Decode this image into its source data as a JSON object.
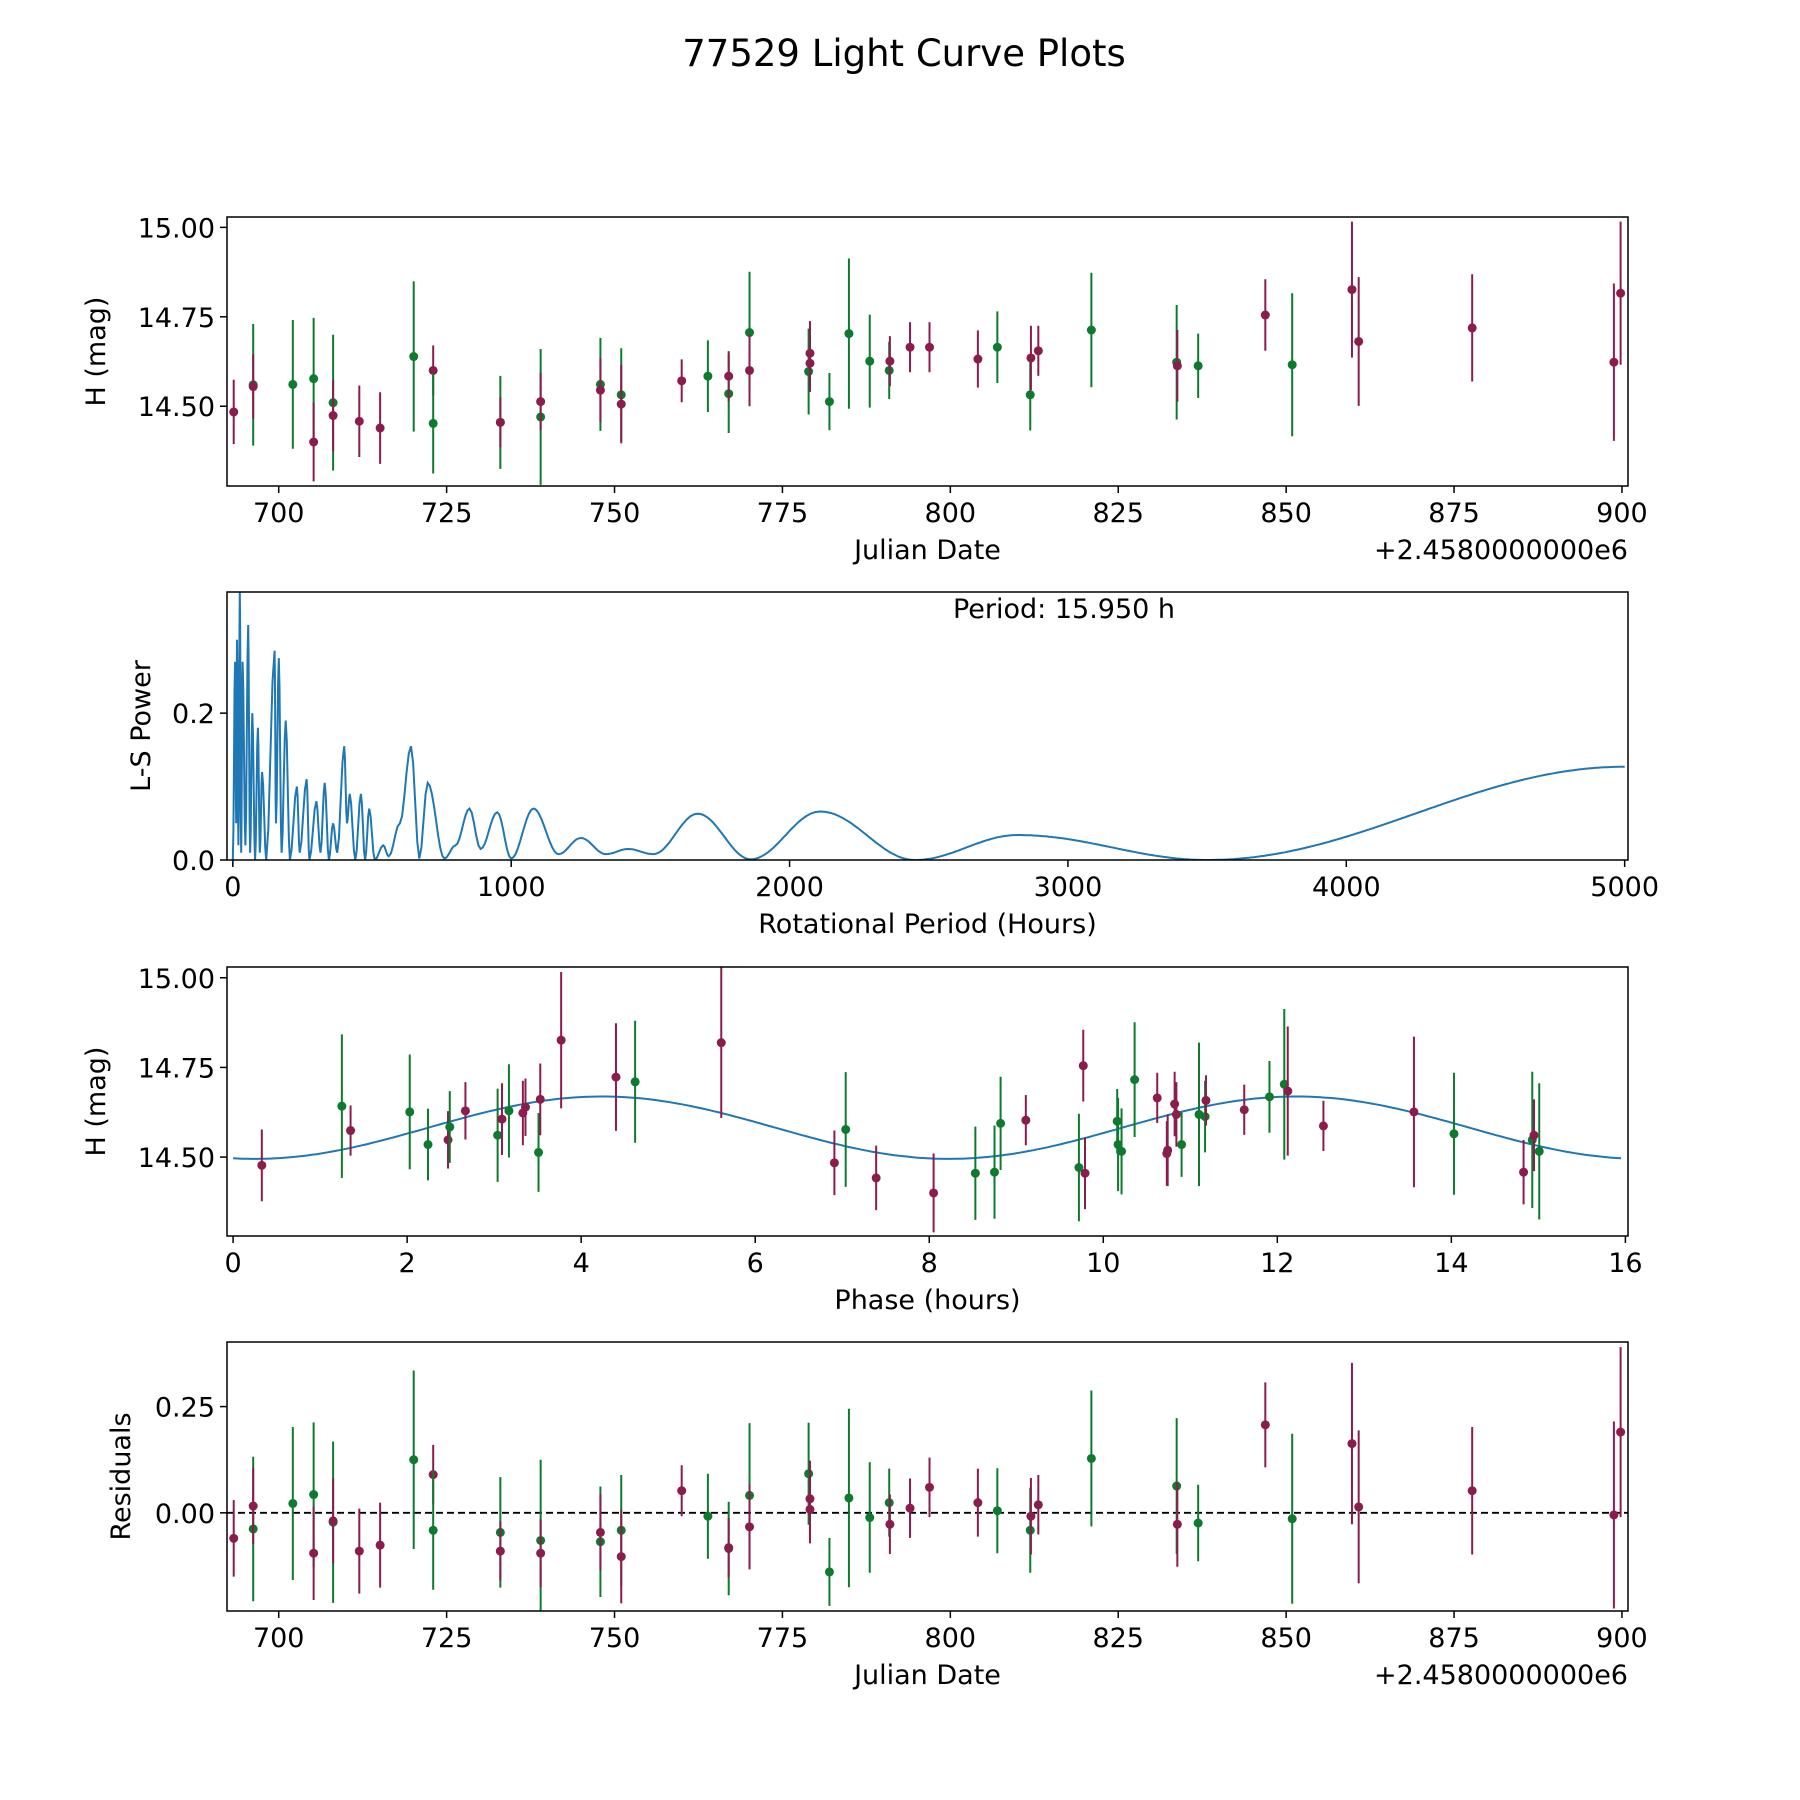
{
  "title": "77529 Light Curve Plots",
  "colors": {
    "filter_a": "#8a1c4e",
    "filter_b": "#0e7a2e",
    "line": "#1f77b4",
    "axis": "#000000"
  },
  "chart_data": [
    {
      "id": "lightcurve",
      "type": "scatter",
      "title": "",
      "xlabel": "Julian Date",
      "ylabel": "H (mag)",
      "offset_label": "+2.4580000000e6",
      "xlim": [
        692.3,
        900.9
      ],
      "ylim": [
        14.277,
        15.029
      ],
      "xticks": [
        700,
        725,
        750,
        775,
        800,
        825,
        850,
        875,
        900
      ],
      "xtick_labels": [
        "700",
        "725",
        "750",
        "775",
        "800",
        "825",
        "850",
        "875",
        "900"
      ],
      "yticks": [
        14.5,
        14.75,
        15.0
      ],
      "ytick_labels": [
        "14.50",
        "14.75",
        "15.00"
      ],
      "points": [
        {
          "jd": 693.3,
          "mag": 14.484,
          "err": 0.09,
          "resid": -0.06,
          "f": "a"
        },
        {
          "jd": 696.2,
          "mag": 14.56,
          "err": 0.17,
          "resid": -0.038,
          "f": "b"
        },
        {
          "jd": 696.2,
          "mag": 14.555,
          "err": 0.09,
          "resid": 0.016,
          "f": "a"
        },
        {
          "jd": 702.1,
          "mag": 14.561,
          "err": 0.18,
          "resid": 0.022,
          "f": "b"
        },
        {
          "jd": 705.2,
          "mag": 14.577,
          "err": 0.17,
          "resid": 0.043,
          "f": "b"
        },
        {
          "jd": 705.2,
          "mag": 14.4,
          "err": 0.11,
          "resid": -0.095,
          "f": "a"
        },
        {
          "jd": 708.1,
          "mag": 14.51,
          "err": 0.19,
          "resid": -0.022,
          "f": "b"
        },
        {
          "jd": 708.1,
          "mag": 14.474,
          "err": 0.1,
          "resid": -0.019,
          "f": "a"
        },
        {
          "jd": 712.0,
          "mag": 14.458,
          "err": 0.1,
          "resid": -0.09,
          "f": "a"
        },
        {
          "jd": 715.1,
          "mag": 14.439,
          "err": 0.1,
          "resid": -0.076,
          "f": "a"
        },
        {
          "jd": 720.1,
          "mag": 14.639,
          "err": 0.21,
          "resid": 0.125,
          "f": "b"
        },
        {
          "jd": 723.0,
          "mag": 14.6,
          "err": 0.07,
          "resid": 0.09,
          "f": "a"
        },
        {
          "jd": 723.0,
          "mag": 14.452,
          "err": 0.14,
          "resid": -0.041,
          "f": "b"
        },
        {
          "jd": 733.0,
          "mag": 14.455,
          "err": 0.13,
          "resid": -0.046,
          "f": "b"
        },
        {
          "jd": 733.0,
          "mag": 14.455,
          "err": 0.07,
          "resid": -0.09,
          "f": "a"
        },
        {
          "jd": 739.0,
          "mag": 14.47,
          "err": 0.19,
          "resid": -0.065,
          "f": "b"
        },
        {
          "jd": 739.0,
          "mag": 14.513,
          "err": 0.08,
          "resid": -0.095,
          "f": "a"
        },
        {
          "jd": 747.9,
          "mag": 14.561,
          "err": 0.13,
          "resid": -0.068,
          "f": "b"
        },
        {
          "jd": 747.9,
          "mag": 14.545,
          "err": 0.09,
          "resid": -0.046,
          "f": "a"
        },
        {
          "jd": 751.0,
          "mag": 14.532,
          "err": 0.13,
          "resid": -0.041,
          "f": "b"
        },
        {
          "jd": 751.0,
          "mag": 14.506,
          "err": 0.11,
          "resid": -0.103,
          "f": "a"
        },
        {
          "jd": 760.0,
          "mag": 14.571,
          "err": 0.06,
          "resid": 0.052,
          "f": "a"
        },
        {
          "jd": 763.9,
          "mag": 14.584,
          "err": 0.1,
          "resid": -0.008,
          "f": "b"
        },
        {
          "jd": 767.0,
          "mag": 14.535,
          "err": 0.11,
          "resid": -0.084,
          "f": "b"
        },
        {
          "jd": 767.0,
          "mag": 14.584,
          "err": 0.07,
          "resid": -0.082,
          "f": "a"
        },
        {
          "jd": 770.1,
          "mag": 14.706,
          "err": 0.17,
          "resid": 0.041,
          "f": "b"
        },
        {
          "jd": 770.1,
          "mag": 14.6,
          "err": 0.1,
          "resid": -0.033,
          "f": "a"
        },
        {
          "jd": 778.9,
          "mag": 14.597,
          "err": 0.12,
          "resid": 0.092,
          "f": "b"
        },
        {
          "jd": 779.1,
          "mag": 14.648,
          "err": 0.09,
          "resid": 0.033,
          "f": "a"
        },
        {
          "jd": 779.1,
          "mag": 14.62,
          "err": 0.08,
          "resid": 0.008,
          "f": "a"
        },
        {
          "jd": 782.0,
          "mag": 14.513,
          "err": 0.08,
          "resid": -0.139,
          "f": "b"
        },
        {
          "jd": 784.9,
          "mag": 14.703,
          "err": 0.21,
          "resid": 0.035,
          "f": "b"
        },
        {
          "jd": 788.0,
          "mag": 14.626,
          "err": 0.13,
          "resid": -0.011,
          "f": "b"
        },
        {
          "jd": 790.9,
          "mag": 14.6,
          "err": 0.08,
          "resid": 0.024,
          "f": "b"
        },
        {
          "jd": 791.0,
          "mag": 14.626,
          "err": 0.07,
          "resid": -0.027,
          "f": "a"
        },
        {
          "jd": 794.0,
          "mag": 14.665,
          "err": 0.07,
          "resid": 0.011,
          "f": "a"
        },
        {
          "jd": 796.9,
          "mag": 14.665,
          "err": 0.07,
          "resid": 0.06,
          "f": "a"
        },
        {
          "jd": 804.1,
          "mag": 14.632,
          "err": 0.08,
          "resid": 0.024,
          "f": "a"
        },
        {
          "jd": 807.0,
          "mag": 14.665,
          "err": 0.1,
          "resid": 0.005,
          "f": "b"
        },
        {
          "jd": 811.9,
          "mag": 14.532,
          "err": 0.1,
          "resid": -0.041,
          "f": "b"
        },
        {
          "jd": 812.0,
          "mag": 14.635,
          "err": 0.09,
          "resid": -0.008,
          "f": "a"
        },
        {
          "jd": 813.1,
          "mag": 14.655,
          "err": 0.07,
          "resid": 0.019,
          "f": "a"
        },
        {
          "jd": 821.0,
          "mag": 14.713,
          "err": 0.16,
          "resid": 0.128,
          "f": "b"
        },
        {
          "jd": 833.7,
          "mag": 14.623,
          "err": 0.16,
          "resid": 0.063,
          "f": "b"
        },
        {
          "jd": 833.8,
          "mag": 14.613,
          "err": 0.1,
          "resid": -0.027,
          "f": "a"
        },
        {
          "jd": 836.9,
          "mag": 14.613,
          "err": 0.09,
          "resid": -0.024,
          "f": "b"
        },
        {
          "jd": 846.9,
          "mag": 14.755,
          "err": 0.1,
          "resid": 0.207,
          "f": "a"
        },
        {
          "jd": 850.9,
          "mag": 14.616,
          "err": 0.2,
          "resid": -0.014,
          "f": "b"
        },
        {
          "jd": 859.8,
          "mag": 14.826,
          "err": 0.19,
          "resid": 0.163,
          "f": "a"
        },
        {
          "jd": 860.8,
          "mag": 14.681,
          "err": 0.18,
          "resid": 0.014,
          "f": "a"
        },
        {
          "jd": 877.7,
          "mag": 14.719,
          "err": 0.15,
          "resid": 0.052,
          "f": "a"
        },
        {
          "jd": 898.8,
          "mag": 14.623,
          "err": 0.22,
          "resid": -0.005,
          "f": "a"
        },
        {
          "jd": 899.8,
          "mag": 14.816,
          "err": 0.2,
          "resid": 0.19,
          "f": "a"
        }
      ]
    },
    {
      "id": "periodogram",
      "type": "line",
      "xlabel": "Rotational Period (Hours)",
      "ylabel": "L-S Power",
      "annotation": "Period: 15.950 h",
      "xlim": [
        -21,
        5012
      ],
      "ylim": [
        0,
        0.365
      ],
      "xticks": [
        0,
        1000,
        2000,
        3000,
        4000,
        5000
      ],
      "xtick_labels": [
        "0",
        "1000",
        "2000",
        "3000",
        "4000",
        "5000"
      ],
      "yticks": [
        0,
        0.2
      ],
      "ytick_labels": [
        "0.0",
        "0.2"
      ],
      "extrema": [
        [
          0,
          0
        ],
        [
          8,
          0.27
        ],
        [
          12,
          0.05
        ],
        [
          15,
          0.3
        ],
        [
          20,
          0.02
        ],
        [
          25,
          0.365
        ],
        [
          30,
          0.01
        ],
        [
          35,
          0.27
        ],
        [
          45,
          0.02
        ],
        [
          55,
          0.32
        ],
        [
          62,
          0.01
        ],
        [
          70,
          0.2
        ],
        [
          80,
          0.0
        ],
        [
          90,
          0.18
        ],
        [
          97,
          0.01
        ],
        [
          105,
          0.12
        ],
        [
          120,
          0.0
        ],
        [
          150,
          0.285
        ],
        [
          155,
          0.05
        ],
        [
          165,
          0.275
        ],
        [
          175,
          0.01
        ],
        [
          190,
          0.19
        ],
        [
          205,
          0.0
        ],
        [
          230,
          0.1
        ],
        [
          240,
          0.01
        ],
        [
          265,
          0.11
        ],
        [
          275,
          0.0
        ],
        [
          300,
          0.08
        ],
        [
          315,
          0.01
        ],
        [
          330,
          0.105
        ],
        [
          345,
          0.0
        ],
        [
          360,
          0.05
        ],
        [
          375,
          0.01
        ],
        [
          400,
          0.155
        ],
        [
          410,
          0.05
        ],
        [
          420,
          0.09
        ],
        [
          440,
          0.0
        ],
        [
          460,
          0.09
        ],
        [
          475,
          0.0
        ],
        [
          490,
          0.07
        ],
        [
          510,
          0.0
        ],
        [
          540,
          0.02
        ],
        [
          560,
          0.005
        ],
        [
          600,
          0.05
        ],
        [
          640,
          0.155
        ],
        [
          670,
          0.002
        ],
        [
          700,
          0.105
        ],
        [
          760,
          0.002
        ],
        [
          800,
          0.02
        ],
        [
          850,
          0.07
        ],
        [
          890,
          0.015
        ],
        [
          950,
          0.065
        ],
        [
          1000,
          0.002
        ],
        [
          1080,
          0.07
        ],
        [
          1170,
          0.008
        ],
        [
          1250,
          0.03
        ],
        [
          1340,
          0.008
        ],
        [
          1420,
          0.015
        ],
        [
          1510,
          0.008
        ],
        [
          1670,
          0.063
        ],
        [
          1860,
          0.001
        ],
        [
          2110,
          0.066
        ],
        [
          2450,
          0.0
        ],
        [
          2820,
          0.034
        ],
        [
          3500,
          0.0
        ],
        [
          5000,
          0.127
        ]
      ]
    },
    {
      "id": "phased",
      "type": "scatter",
      "xlabel": "Phase (hours)",
      "ylabel": "H (mag)",
      "xlim": [
        -0.07,
        16.03
      ],
      "ylim": [
        14.28,
        15.03
      ],
      "xticks": [
        0,
        2,
        4,
        6,
        8,
        10,
        12,
        14,
        16
      ],
      "xtick_labels": [
        "0",
        "2",
        "4",
        "6",
        "8",
        "10",
        "12",
        "14",
        "16"
      ],
      "yticks": [
        14.5,
        14.75,
        15.0
      ],
      "ytick_labels": [
        "14.50",
        "14.75",
        "15.00"
      ],
      "model": {
        "mean": 14.582,
        "amplitude": 0.087,
        "half_period_h": 7.975,
        "phase_shift_h": 0.25,
        "x_range": [
          0,
          15.95
        ]
      },
      "points": [
        {
          "phase": 0.33,
          "mag": 14.477,
          "err": 0.1,
          "f": "a"
        },
        {
          "phase": 1.25,
          "mag": 14.642,
          "err": 0.2,
          "f": "b"
        },
        {
          "phase": 1.35,
          "mag": 14.574,
          "err": 0.07,
          "f": "a"
        },
        {
          "phase": 2.03,
          "mag": 14.626,
          "err": 0.16,
          "f": "b"
        },
        {
          "phase": 2.24,
          "mag": 14.535,
          "err": 0.1,
          "f": "b"
        },
        {
          "phase": 2.47,
          "mag": 14.548,
          "err": 0.08,
          "f": "a"
        },
        {
          "phase": 2.49,
          "mag": 14.584,
          "err": 0.1,
          "f": "b"
        },
        {
          "phase": 2.67,
          "mag": 14.629,
          "err": 0.08,
          "f": "a"
        },
        {
          "phase": 3.04,
          "mag": 14.561,
          "err": 0.13,
          "f": "b"
        },
        {
          "phase": 3.09,
          "mag": 14.606,
          "err": 0.1,
          "f": "a"
        },
        {
          "phase": 3.17,
          "mag": 14.629,
          "err": 0.13,
          "f": "b"
        },
        {
          "phase": 3.33,
          "mag": 14.623,
          "err": 0.09,
          "f": "a"
        },
        {
          "phase": 3.36,
          "mag": 14.639,
          "err": 0.08,
          "f": "a"
        },
        {
          "phase": 3.51,
          "mag": 14.513,
          "err": 0.11,
          "f": "b"
        },
        {
          "phase": 3.53,
          "mag": 14.661,
          "err": 0.1,
          "f": "a"
        },
        {
          "phase": 3.77,
          "mag": 14.826,
          "err": 0.19,
          "f": "a"
        },
        {
          "phase": 4.4,
          "mag": 14.723,
          "err": 0.15,
          "f": "a"
        },
        {
          "phase": 4.62,
          "mag": 14.71,
          "err": 0.17,
          "f": "b"
        },
        {
          "phase": 5.61,
          "mag": 14.819,
          "err": 0.21,
          "f": "a"
        },
        {
          "phase": 6.91,
          "mag": 14.484,
          "err": 0.09,
          "f": "a"
        },
        {
          "phase": 7.04,
          "mag": 14.577,
          "err": 0.16,
          "f": "b"
        },
        {
          "phase": 7.39,
          "mag": 14.442,
          "err": 0.09,
          "f": "a"
        },
        {
          "phase": 8.05,
          "mag": 14.4,
          "err": 0.11,
          "f": "a"
        },
        {
          "phase": 8.53,
          "mag": 14.455,
          "err": 0.13,
          "f": "b"
        },
        {
          "phase": 8.75,
          "mag": 14.458,
          "err": 0.13,
          "f": "b"
        },
        {
          "phase": 8.82,
          "mag": 14.594,
          "err": 0.13,
          "f": "b"
        },
        {
          "phase": 9.11,
          "mag": 14.603,
          "err": 0.07,
          "f": "a"
        },
        {
          "phase": 9.72,
          "mag": 14.471,
          "err": 0.15,
          "f": "b"
        },
        {
          "phase": 9.77,
          "mag": 14.755,
          "err": 0.1,
          "f": "a"
        },
        {
          "phase": 9.79,
          "mag": 14.455,
          "err": 0.1,
          "f": "a"
        },
        {
          "phase": 10.16,
          "mag": 14.6,
          "err": 0.09,
          "f": "b"
        },
        {
          "phase": 10.17,
          "mag": 14.535,
          "err": 0.13,
          "f": "b"
        },
        {
          "phase": 10.21,
          "mag": 14.516,
          "err": 0.12,
          "f": "b"
        },
        {
          "phase": 10.36,
          "mag": 14.716,
          "err": 0.16,
          "f": "b"
        },
        {
          "phase": 10.62,
          "mag": 14.665,
          "err": 0.07,
          "f": "a"
        },
        {
          "phase": 10.73,
          "mag": 14.51,
          "err": 0.09,
          "f": "a"
        },
        {
          "phase": 10.74,
          "mag": 14.519,
          "err": 0.1,
          "f": "a"
        },
        {
          "phase": 10.82,
          "mag": 14.648,
          "err": 0.09,
          "f": "a"
        },
        {
          "phase": 10.84,
          "mag": 14.619,
          "err": 0.09,
          "f": "a"
        },
        {
          "phase": 10.9,
          "mag": 14.535,
          "err": 0.09,
          "f": "b"
        },
        {
          "phase": 11.1,
          "mag": 14.619,
          "err": 0.2,
          "f": "b"
        },
        {
          "phase": 11.17,
          "mag": 14.613,
          "err": 0.1,
          "f": "b"
        },
        {
          "phase": 11.18,
          "mag": 14.658,
          "err": 0.07,
          "f": "a"
        },
        {
          "phase": 11.62,
          "mag": 14.632,
          "err": 0.07,
          "f": "a"
        },
        {
          "phase": 11.91,
          "mag": 14.668,
          "err": 0.1,
          "f": "b"
        },
        {
          "phase": 12.08,
          "mag": 14.703,
          "err": 0.21,
          "f": "b"
        },
        {
          "phase": 12.12,
          "mag": 14.684,
          "err": 0.18,
          "f": "a"
        },
        {
          "phase": 12.53,
          "mag": 14.587,
          "err": 0.07,
          "f": "a"
        },
        {
          "phase": 13.57,
          "mag": 14.626,
          "err": 0.21,
          "f": "a"
        },
        {
          "phase": 14.03,
          "mag": 14.565,
          "err": 0.17,
          "f": "b"
        },
        {
          "phase": 14.83,
          "mag": 14.458,
          "err": 0.09,
          "f": "a"
        },
        {
          "phase": 14.93,
          "mag": 14.548,
          "err": 0.19,
          "f": "b"
        },
        {
          "phase": 14.95,
          "mag": 14.561,
          "err": 0.1,
          "f": "a"
        },
        {
          "phase": 15.01,
          "mag": 14.516,
          "err": 0.19,
          "f": "b"
        }
      ]
    },
    {
      "id": "residuals",
      "type": "scatter",
      "xlabel": "Julian Date",
      "ylabel": "Residuals",
      "offset_label": "+2.4580000000e6",
      "xlim": [
        692.3,
        900.9
      ],
      "ylim": [
        -0.231,
        0.402
      ],
      "xticks": [
        700,
        725,
        750,
        775,
        800,
        825,
        850,
        875,
        900
      ],
      "xtick_labels": [
        "700",
        "725",
        "750",
        "775",
        "800",
        "825",
        "850",
        "875",
        "900"
      ],
      "yticks": [
        0,
        0.25
      ],
      "ytick_labels": [
        "0.00",
        "0.25"
      ],
      "reference_line": 0
    }
  ]
}
